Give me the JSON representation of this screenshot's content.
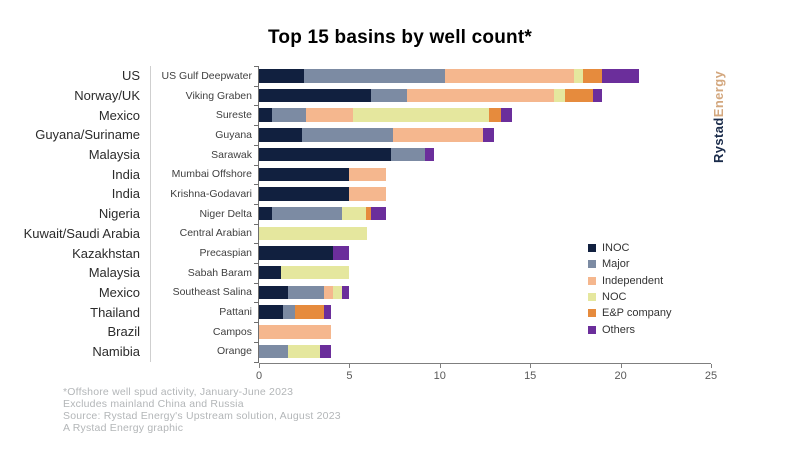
{
  "title": "Top 15 basins by well count*",
  "logo": {
    "part1": "Rystad",
    "part2": "Energy"
  },
  "footer": {
    "lines": [
      "*Offshore well spud activity, January-June 2023",
      "Excludes mainland China and Russia",
      "Source: Rystad Energy's Upstream solution, August 2023",
      "A Rystad Energy graphic"
    ]
  },
  "chart_data": {
    "type": "bar",
    "orientation": "horizontal",
    "stacked": true,
    "title": "Top 15 basins by well count*",
    "xlabel": "",
    "ylabel": "",
    "xlim": [
      0,
      25
    ],
    "x_ticks": [
      0,
      5,
      10,
      15,
      20,
      25
    ],
    "grid": false,
    "legend_position": "right-middle",
    "series": [
      {
        "name": "INOC",
        "color": "#11203f"
      },
      {
        "name": "Major",
        "color": "#7c8ba3"
      },
      {
        "name": "Independent",
        "color": "#f5b78e"
      },
      {
        "name": "NOC",
        "color": "#e5e79e"
      },
      {
        "name": "E&P company",
        "color": "#e68b3d"
      },
      {
        "name": "Others",
        "color": "#6b2e9b"
      }
    ],
    "rows": [
      {
        "country": "US",
        "basin": "US Gulf Deepwater",
        "values": [
          2.5,
          7.8,
          7.1,
          0.5,
          1.1,
          2.0
        ],
        "total": 21.0
      },
      {
        "country": "Norway/UK",
        "basin": "Viking Graben",
        "values": [
          6.2,
          2.0,
          8.1,
          0.6,
          1.6,
          0.5
        ],
        "total": 19.0
      },
      {
        "country": "Mexico",
        "basin": "Sureste",
        "values": [
          0.7,
          1.9,
          2.6,
          7.5,
          0.7,
          0.6
        ],
        "total": 14.0
      },
      {
        "country": "Guyana/Suriname",
        "basin": "Guyana",
        "values": [
          2.4,
          5.0,
          5.0,
          0,
          0,
          0.6
        ],
        "total": 13.0
      },
      {
        "country": "Malaysia",
        "basin": "Sarawak",
        "values": [
          7.3,
          1.9,
          0,
          0,
          0,
          0.5
        ],
        "total": 9.7
      },
      {
        "country": "India",
        "basin": "Mumbai Offshore",
        "values": [
          5.0,
          0,
          2.0,
          0,
          0,
          0
        ],
        "total": 7.0
      },
      {
        "country": "India",
        "basin": "Krishna-Godavari",
        "values": [
          5.0,
          0,
          2.0,
          0,
          0,
          0
        ],
        "total": 7.0
      },
      {
        "country": "Nigeria",
        "basin": "Niger Delta",
        "values": [
          0.7,
          3.9,
          0,
          1.3,
          0.3,
          0.8
        ],
        "total": 7.0
      },
      {
        "country": "Kuwait/Saudi Arabia",
        "basin": "Central Arabian",
        "values": [
          0,
          0,
          0,
          6.0,
          0,
          0
        ],
        "total": 6.0
      },
      {
        "country": "Kazakhstan",
        "basin": "Precaspian",
        "values": [
          4.1,
          0,
          0,
          0,
          0,
          0.9
        ],
        "total": 5.0
      },
      {
        "country": "Malaysia",
        "basin": "Sabah Baram",
        "values": [
          1.2,
          0,
          0,
          3.8,
          0,
          0
        ],
        "total": 5.0
      },
      {
        "country": "Mexico",
        "basin": "Southeast Salina",
        "values": [
          1.6,
          2.0,
          0.5,
          0.5,
          0,
          0.4
        ],
        "total": 5.0
      },
      {
        "country": "Thailand",
        "basin": "Pattani",
        "values": [
          1.3,
          0.7,
          0,
          0,
          1.6,
          0.4
        ],
        "total": 4.0
      },
      {
        "country": "Brazil",
        "basin": "Campos",
        "values": [
          0,
          0,
          4.0,
          0,
          0,
          0
        ],
        "total": 4.0
      },
      {
        "country": "Namibia",
        "basin": "Orange",
        "values": [
          0,
          1.6,
          0,
          1.8,
          0,
          0.6
        ],
        "total": 4.0
      }
    ]
  }
}
